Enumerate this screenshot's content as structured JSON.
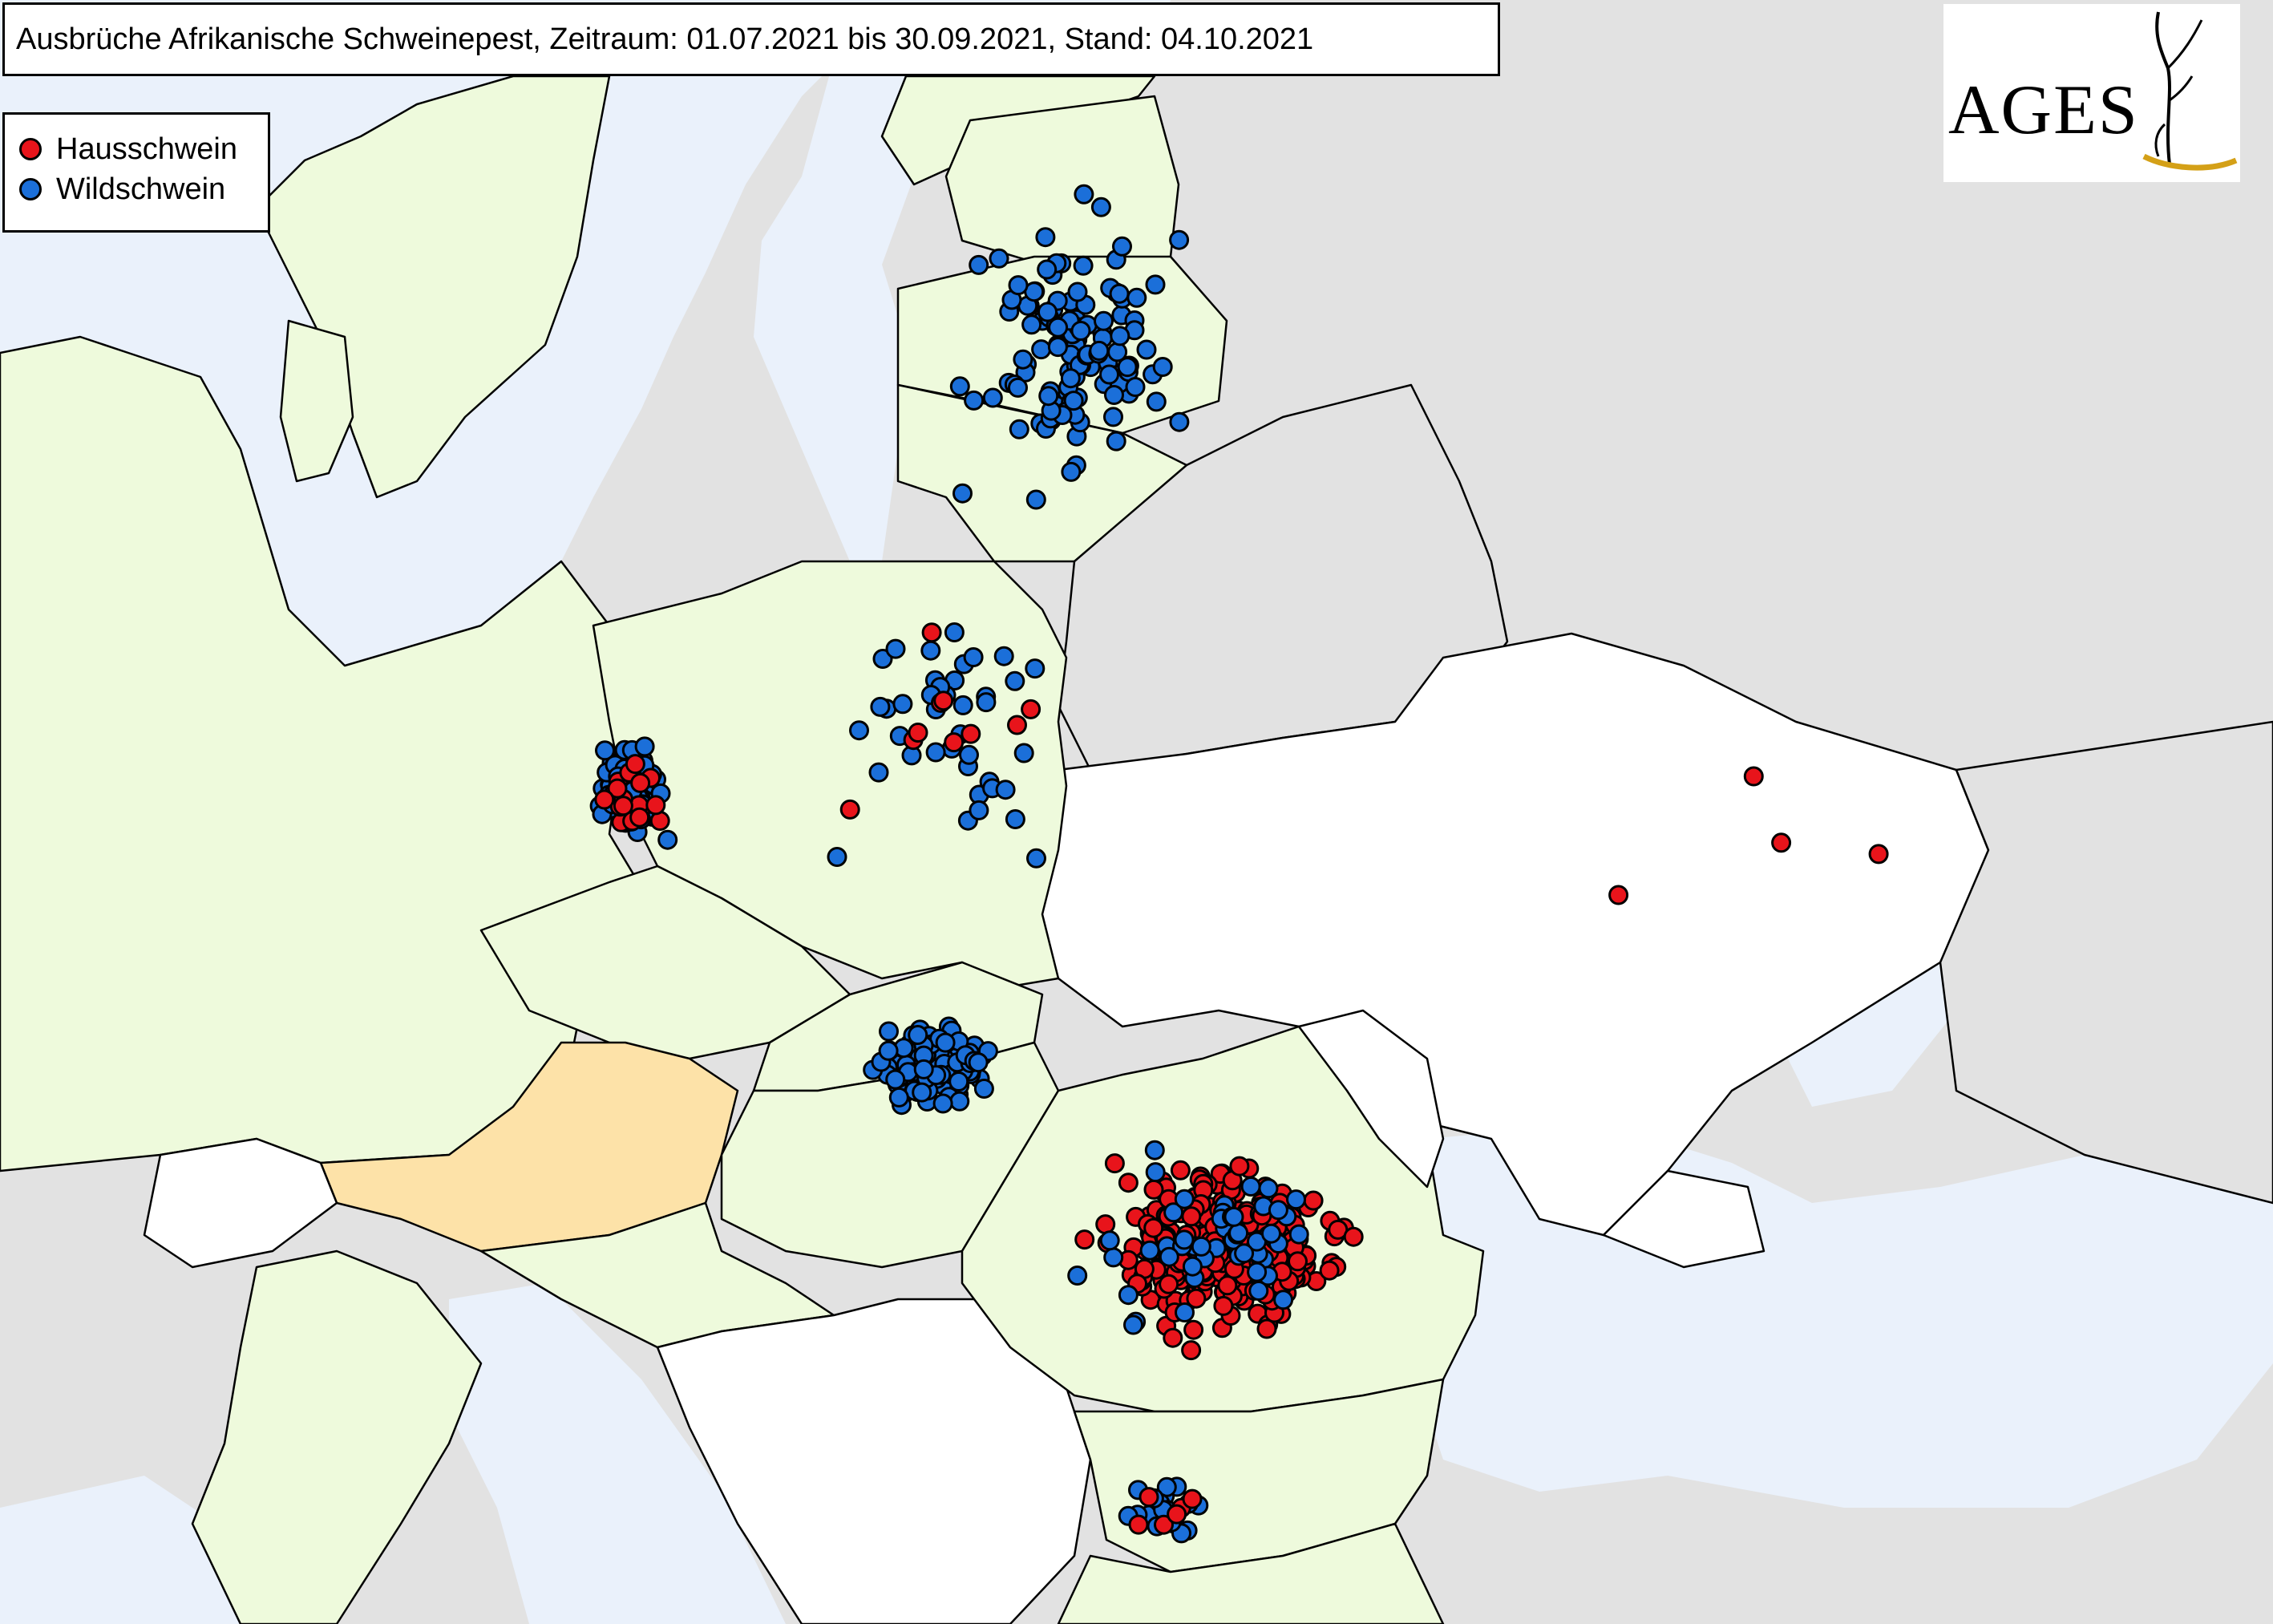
{
  "title": "Ausbrüche Afrikanische Schweinepest, Zeitraum: 01.07.2021 bis 30.09.2021, Stand: 04.10.2021",
  "legend": {
    "items": [
      {
        "label": "Hausschwein",
        "color": "#e8141b"
      },
      {
        "label": "Wildschwein",
        "color": "#1b6fd9"
      }
    ]
  },
  "logo": {
    "text": "AGES",
    "icon": "stylized-figure-icon",
    "swoosh_color": "#d4a017"
  },
  "map": {
    "land_color": "#eefadc",
    "neutral_land_color": "#ffffff",
    "non_eu_color": "#e2e2e2",
    "sea_color": "#eaf1fb",
    "highlight_country": "Austria",
    "highlight_color": "#fde2a8"
  },
  "outbreaks": {
    "clusters": [
      {
        "name": "Estonia-Latvia-Lithuania",
        "type": "wild",
        "count": 120
      },
      {
        "name": "West Poland",
        "type": "wild",
        "count": 90
      },
      {
        "name": "West Poland",
        "type": "domestic",
        "count": 18
      },
      {
        "name": "North-East Poland",
        "type": "wild",
        "count": 40
      },
      {
        "name": "North-East Poland",
        "type": "domestic",
        "count": 10
      },
      {
        "name": "Slovakia-Hungary",
        "type": "wild",
        "count": 120
      },
      {
        "name": "Romania",
        "type": "domestic",
        "count": 280
      },
      {
        "name": "Romania",
        "type": "wild",
        "count": 50
      },
      {
        "name": "Serbia-Bulgaria",
        "type": "wild",
        "count": 20
      },
      {
        "name": "Serbia-Bulgaria",
        "type": "domestic",
        "count": 6
      },
      {
        "name": "Ukraine",
        "type": "domestic",
        "count": 4
      }
    ]
  }
}
